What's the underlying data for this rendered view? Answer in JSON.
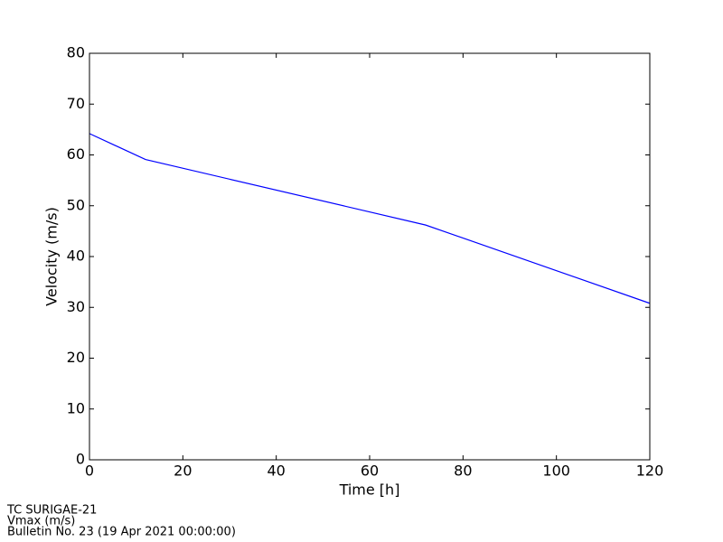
{
  "chart_data": {
    "type": "line",
    "x_label": "Time [h]",
    "y_label": "Velocity (m/s)",
    "x": [
      0,
      12,
      72,
      120
    ],
    "series": [
      {
        "name": "Vmax",
        "color": "#0000ff",
        "values": [
          64.2,
          59.1,
          46.2,
          30.8
        ]
      }
    ],
    "xlim": [
      0,
      120
    ],
    "xticks": [
      0,
      20,
      40,
      60,
      80,
      100,
      120
    ],
    "ylim": [
      0,
      80
    ],
    "yticks": [
      0,
      10,
      20,
      30,
      40,
      50,
      60,
      70,
      80
    ],
    "grid": false,
    "footer": [
      "TC SURIGAE-21",
      "Vmax (m/s)",
      "Bulletin No. 23 (19 Apr 2021  00:00:00)"
    ]
  }
}
